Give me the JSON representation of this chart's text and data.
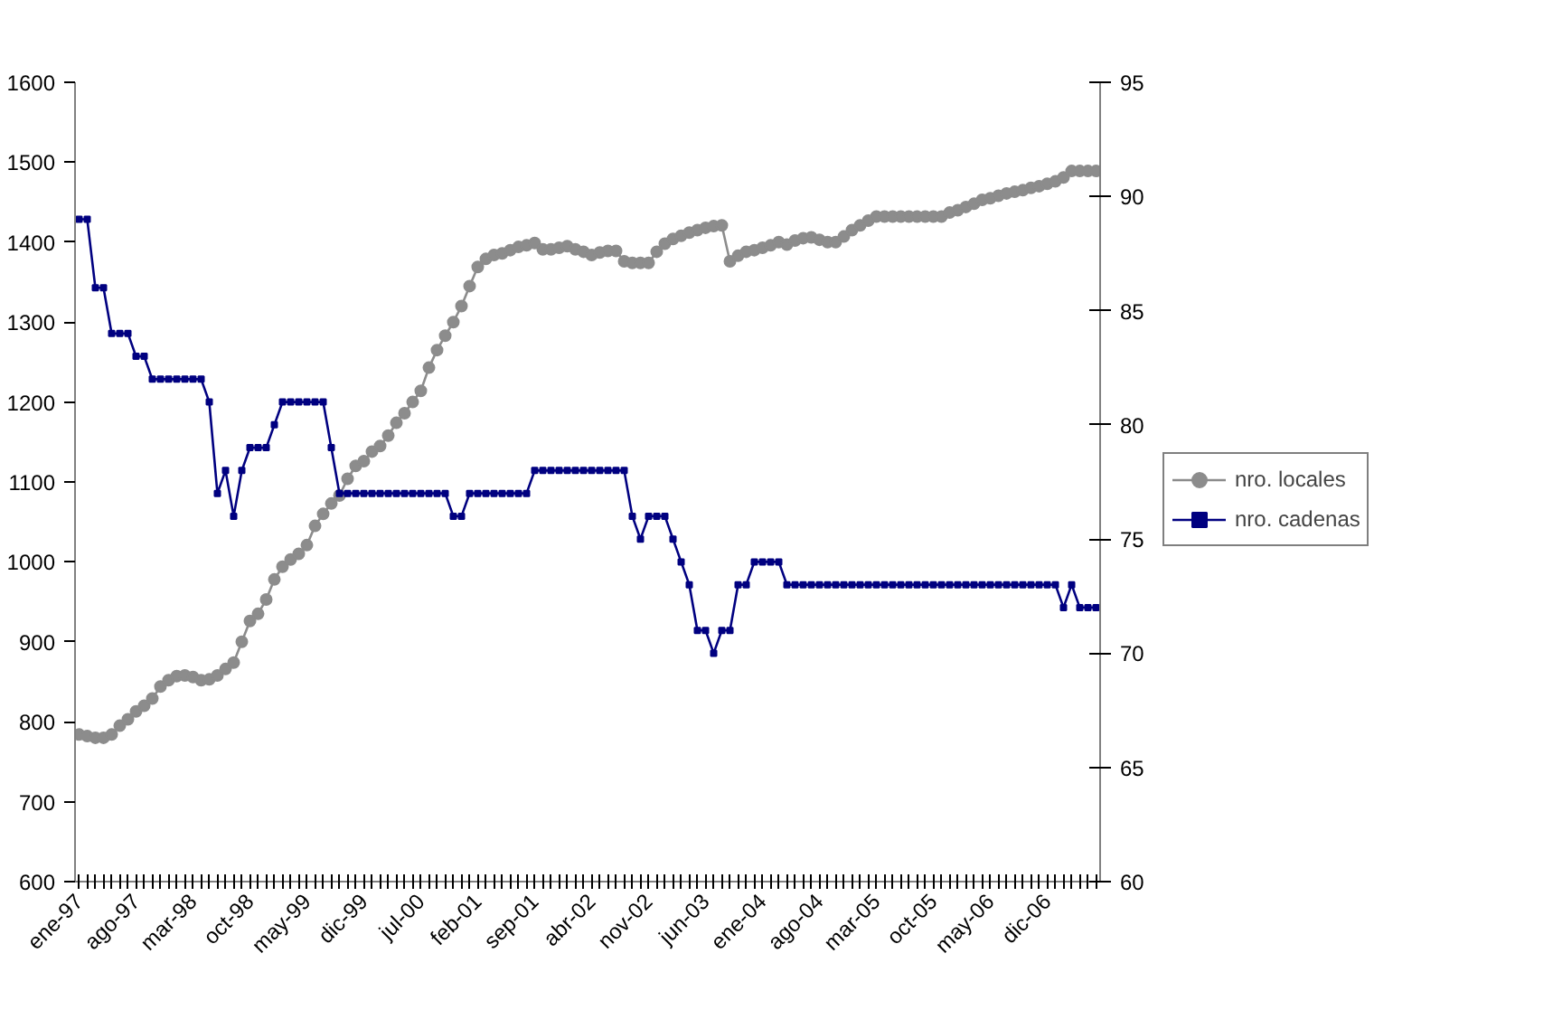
{
  "chart_data": {
    "type": "line",
    "categories": [
      "ene-97",
      null,
      null,
      null,
      null,
      null,
      null,
      "ago-97",
      null,
      null,
      null,
      null,
      null,
      null,
      "mar-98",
      null,
      null,
      null,
      null,
      null,
      null,
      "oct-98",
      null,
      null,
      null,
      null,
      null,
      null,
      "may-99",
      null,
      null,
      null,
      null,
      null,
      null,
      "dic-99",
      null,
      null,
      null,
      null,
      null,
      null,
      "jul-00",
      null,
      null,
      null,
      null,
      null,
      null,
      "feb-01",
      null,
      null,
      null,
      null,
      null,
      null,
      "sep-01",
      null,
      null,
      null,
      null,
      null,
      null,
      "abr-02",
      null,
      null,
      null,
      null,
      null,
      null,
      "nov-02",
      null,
      null,
      null,
      null,
      null,
      null,
      "jun-03",
      null,
      null,
      null,
      null,
      null,
      null,
      "ene-04",
      null,
      null,
      null,
      null,
      null,
      null,
      "ago-04",
      null,
      null,
      null,
      null,
      null,
      null,
      "mar-05",
      null,
      null,
      null,
      null,
      null,
      null,
      "oct-05",
      null,
      null,
      null,
      null,
      null,
      null,
      "may-06",
      null,
      null,
      null,
      null,
      null,
      null,
      "dic-06",
      null,
      null,
      null,
      null,
      null,
      null
    ],
    "series": [
      {
        "name": "nro. locales",
        "color": "#8c8c8c",
        "marker": "circle",
        "values": [
          784,
          782,
          780,
          780,
          784,
          795,
          803,
          813,
          820,
          829,
          844,
          852,
          857,
          858,
          856,
          852,
          853,
          858,
          866,
          874,
          900,
          926,
          935,
          953,
          978,
          994,
          1003,
          1010,
          1021,
          1045,
          1060,
          1073,
          1083,
          1104,
          1120,
          1126,
          1138,
          1145,
          1158,
          1174,
          1186,
          1200,
          1214,
          1243,
          1265,
          1283,
          1300,
          1320,
          1345,
          1369,
          1379,
          1384,
          1386,
          1390,
          1394,
          1396,
          1399,
          1391,
          1391,
          1393,
          1395,
          1391,
          1388,
          1384,
          1387,
          1389,
          1389,
          1376,
          1374,
          1374,
          1374,
          1388,
          1398,
          1404,
          1408,
          1412,
          1415,
          1418,
          1420,
          1421,
          1376,
          1383,
          1388,
          1390,
          1393,
          1396,
          1400,
          1397,
          1402,
          1405,
          1406,
          1403,
          1400,
          1400,
          1407,
          1415,
          1421,
          1427,
          1432,
          1432,
          1432,
          1432,
          1432,
          1432,
          1432,
          1432,
          1432,
          1437,
          1440,
          1444,
          1448,
          1453,
          1455,
          1458,
          1461,
          1463,
          1465,
          1468,
          1470,
          1473,
          1476,
          1481,
          1489,
          1489,
          1489,
          1489
        ]
      },
      {
        "name": "nro. cadenas",
        "color": "#000080",
        "marker": "square",
        "axis": "y2",
        "values": [
          89,
          89,
          86,
          86,
          84,
          84,
          84,
          83,
          83,
          82,
          82,
          82,
          82,
          82,
          82,
          82,
          81,
          77,
          78,
          76,
          78,
          79,
          79,
          79,
          80,
          81,
          81,
          81,
          81,
          81,
          81,
          79,
          77,
          77,
          77,
          77,
          77,
          77,
          77,
          77,
          77,
          77,
          77,
          77,
          77,
          77,
          76,
          76,
          77,
          77,
          77,
          77,
          77,
          77,
          77,
          77,
          78,
          78,
          78,
          78,
          78,
          78,
          78,
          78,
          78,
          78,
          78,
          78,
          76,
          75,
          76,
          76,
          76,
          75,
          74,
          73,
          71,
          71,
          70,
          71,
          71,
          73,
          73,
          74,
          74,
          74,
          74,
          73,
          73,
          73,
          73,
          73,
          73,
          73,
          73,
          73,
          73,
          73,
          73,
          73,
          73,
          73,
          73,
          73,
          73,
          73,
          73,
          73,
          73,
          73,
          73,
          73,
          73,
          73,
          73,
          73,
          73,
          73,
          73,
          73,
          73,
          72,
          73,
          72,
          72,
          72
        ]
      }
    ],
    "ylim": [
      600,
      1600
    ],
    "yticks": [
      600,
      700,
      800,
      900,
      1000,
      1100,
      1200,
      1300,
      1400,
      1500,
      1600
    ],
    "y2lim": [
      60,
      95
    ],
    "y2ticks": [
      60,
      65,
      70,
      75,
      80,
      85,
      90,
      95
    ],
    "grid": false,
    "legend": "right",
    "line_style": "solid"
  }
}
